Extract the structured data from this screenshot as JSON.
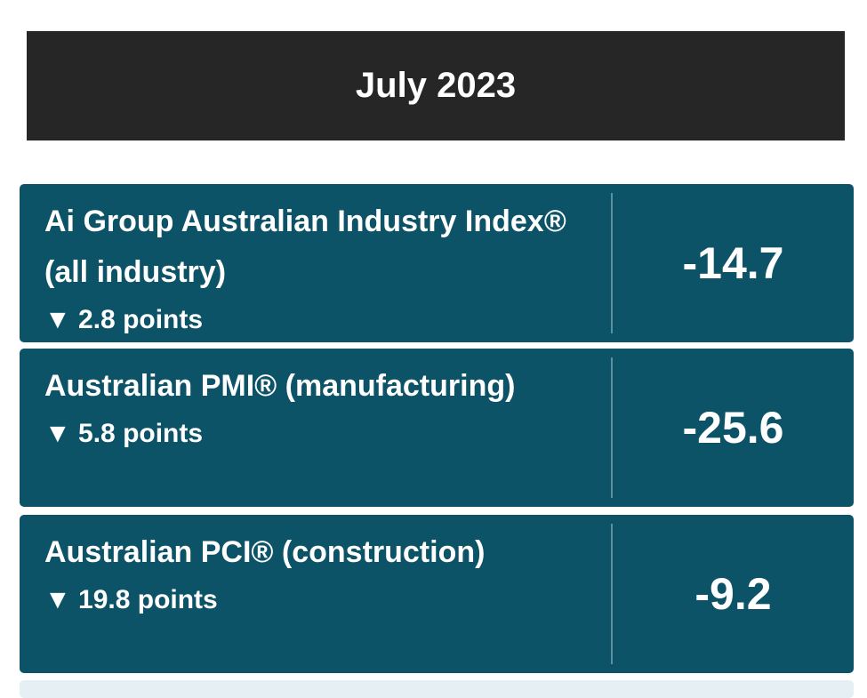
{
  "header": {
    "title": "July 2023"
  },
  "rows": [
    {
      "name": "Ai Group Australian Industry Index® (all industry)",
      "change": "▼ 2.8 points",
      "value": "-14.7"
    },
    {
      "name": "Australian PMI® (manufacturing)",
      "change": "▼ 5.8 points",
      "value": "-25.6"
    },
    {
      "name": "Australian PCI® (construction)",
      "change": "▼ 19.8 points",
      "value": "-9.2"
    }
  ]
}
